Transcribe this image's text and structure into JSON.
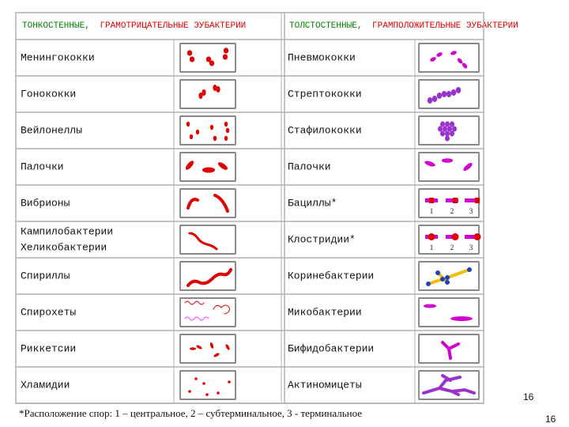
{
  "header": {
    "left": {
      "thin": "ТОНКОСТЕННЫЕ,",
      "gram": "ГРАМОТРИЦАТЕЛЬНЫЕ ЭУБАКТЕРИИ"
    },
    "right": {
      "thin": "ТОЛСТОСТЕННЫЕ,",
      "gram": "ГРАМПОЛОЖИТЕЛЬНЫЕ ЭУБАКТЕРИИ"
    }
  },
  "rows": [
    {
      "left": [
        "Менингококки"
      ],
      "right": [
        "Пневмококки"
      ]
    },
    {
      "left": [
        "Гонококки"
      ],
      "right": [
        "Стрептококки"
      ]
    },
    {
      "left": [
        "Вейлонеллы"
      ],
      "right": [
        "Стафилококки"
      ]
    },
    {
      "left": [
        "Палочки"
      ],
      "right": [
        "Палочки"
      ]
    },
    {
      "left": [
        "Вибрионы"
      ],
      "right": [
        "Бациллы*"
      ]
    },
    {
      "left": [
        "Кампилобактерии",
        "Хеликобактерии"
      ],
      "right": [
        "Клостридии*"
      ]
    },
    {
      "left": [
        "Спириллы"
      ],
      "right": [
        "Коринебактерии"
      ]
    },
    {
      "left": [
        "Спирохеты"
      ],
      "right": [
        "Микобактерии"
      ]
    },
    {
      "left": [
        "Риккетсии"
      ],
      "right": [
        "Бифидобактерии"
      ]
    },
    {
      "left": [
        "Хламидии"
      ],
      "right": [
        "Актиномицеты"
      ]
    }
  ],
  "spore_labels": {
    "bacilli": [
      "1",
      "2",
      "3"
    ],
    "clostridia": [
      "1",
      "2",
      "3"
    ]
  },
  "footnote": "*Расположение спор: 1 – центральное, 2 – субтерминальное, 3 - терминальное",
  "page_number_inner": "16",
  "page_number": "16"
}
